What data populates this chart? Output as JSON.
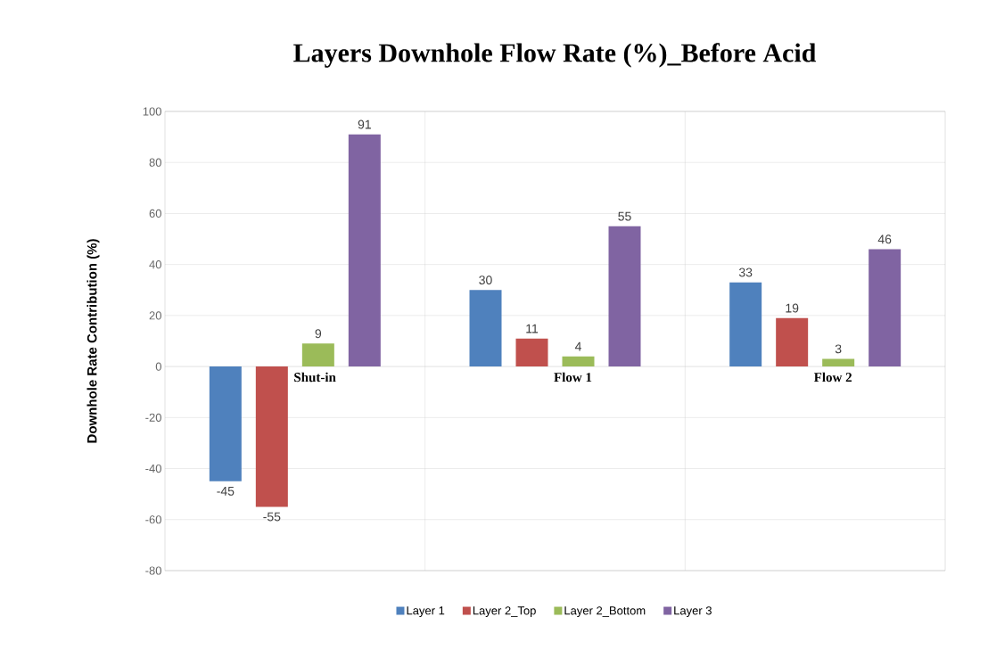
{
  "chart_data": {
    "type": "bar",
    "title": "Layers Downhole Flow Rate (%)_Before Acid",
    "ylabel": "Downhole Rate Contribution (%)",
    "categories": [
      "Shut-in",
      "Flow 1",
      "Flow 2"
    ],
    "series": [
      {
        "name": "Layer 1",
        "color": "#4f81bd",
        "values": [
          -45,
          30,
          33
        ]
      },
      {
        "name": "Layer 2_Top",
        "color": "#c0504d",
        "values": [
          -55,
          11,
          19
        ]
      },
      {
        "name": "Layer 2_Bottom",
        "color": "#9bbb59",
        "values": [
          9,
          4,
          3
        ]
      },
      {
        "name": "Layer 3",
        "color": "#8064a2",
        "values": [
          91,
          55,
          46
        ]
      }
    ],
    "ylim": [
      -80,
      100
    ],
    "yticks": [
      -80,
      -60,
      -40,
      -20,
      0,
      20,
      40,
      60,
      80,
      100
    ],
    "grid": true,
    "data_labels": true,
    "legend": "bottom"
  }
}
